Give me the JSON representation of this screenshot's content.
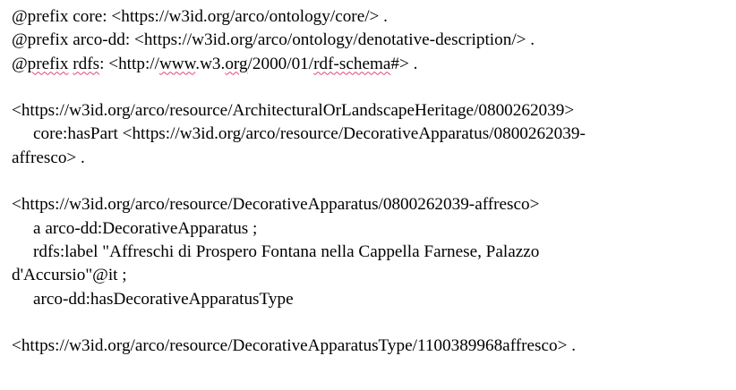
{
  "prefixes": {
    "core": {
      "text": "@prefix core: <https://w3id.org/arco/ontology/core/> ."
    },
    "arco_dd": {
      "text": "@prefix arco-dd: <https://w3id.org/arco/ontology/denotative-description/> ."
    },
    "rdfs": {
      "lead": "@",
      "keyword": "prefix",
      "sp1": " ",
      "name": "rdfs",
      "mid1": ": <http://",
      "www": "www",
      "mid2": ".w3.",
      "org": "org",
      "mid3": "/2000/01/",
      "schema": "rdf-schema",
      "tail": "#> ."
    }
  },
  "block1": {
    "subject": "<https://w3id.org/arco/resource/ArchitecturalOrLandscapeHeritage/0800262039>",
    "has_part_line": "core:hasPart <https://w3id.org/arco/resource/DecorativeApparatus/0800262039-",
    "has_part_cont": "affresco> ."
  },
  "block2": {
    "subject": "<https://w3id.org/arco/resource/DecorativeApparatus/0800262039-affresco>",
    "type_line": "a arco-dd:DecorativeApparatus ;",
    "label_line": "rdfs:label \"Affreschi di Prospero Fontana nella Cappella Farnese, Palazzo",
    "label_cont": "d'Accursio\"@it ;",
    "apparatus_type_line": "arco-dd:hasDecorativeApparatusType"
  },
  "block3": {
    "object": "<https://w3id.org/arco/resource/DecorativeApparatusType/1100389968affresco> ."
  },
  "colors": {
    "text": "#000000",
    "background": "#ffffff",
    "spellcheck_underline": "#e0457b"
  }
}
